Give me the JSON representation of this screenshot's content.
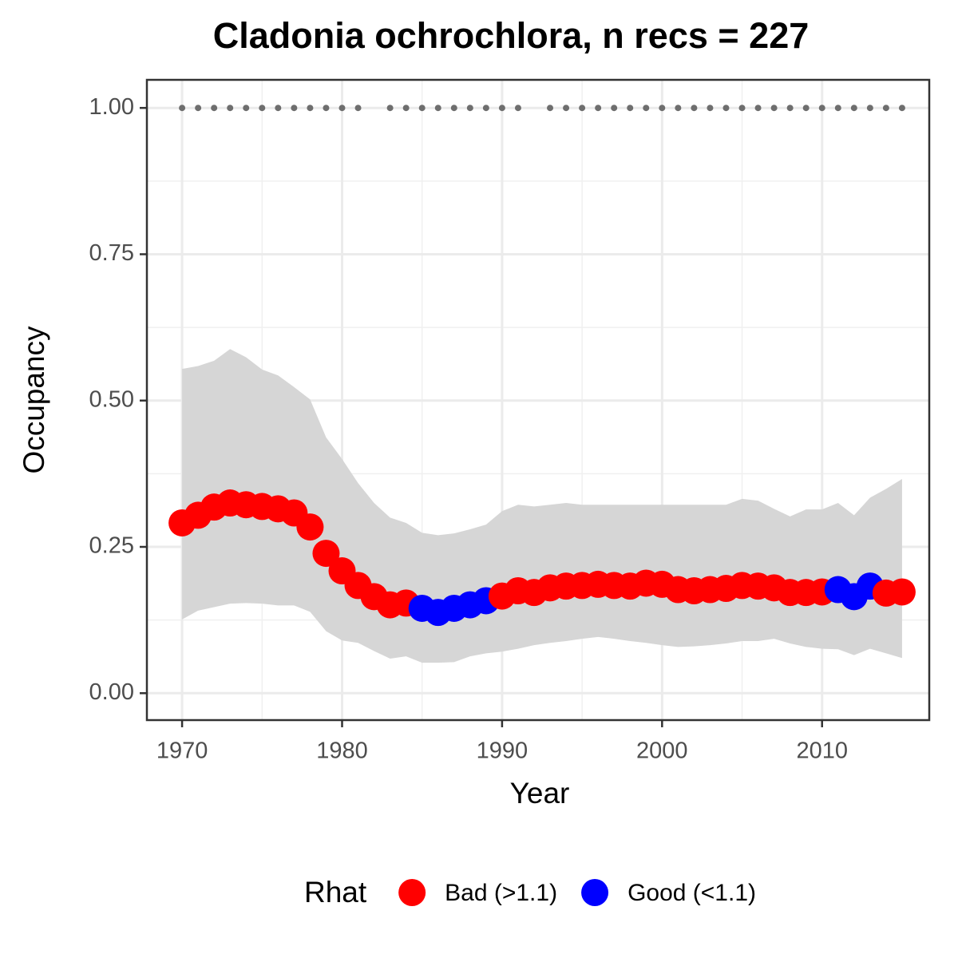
{
  "chart_data": {
    "type": "line",
    "title": "Cladonia ochrochlora, n recs = 227",
    "x_label": "Year",
    "y_label": "Occupancy",
    "legend_title": "Rhat",
    "legend_position": "bottom",
    "grid": true,
    "xlim": [
      1967.8,
      2016.7
    ],
    "ylim": [
      -0.046,
      1.048
    ],
    "xticks": [
      1970,
      1980,
      1990,
      2000,
      2010
    ],
    "yticks": [
      {
        "value": 0,
        "label": "0.00"
      },
      {
        "value": 0.25,
        "label": "0.25"
      },
      {
        "value": 0.5,
        "label": "0.50"
      },
      {
        "value": 0.75,
        "label": "0.75"
      },
      {
        "value": 1,
        "label": "1.00"
      }
    ],
    "x": [
      1970,
      1971,
      1972,
      1973,
      1974,
      1975,
      1976,
      1977,
      1978,
      1979,
      1980,
      1981,
      1982,
      1983,
      1984,
      1985,
      1986,
      1987,
      1988,
      1989,
      1990,
      1991,
      1992,
      1993,
      1994,
      1995,
      1996,
      1997,
      1998,
      1999,
      2000,
      2001,
      2002,
      2003,
      2004,
      2005,
      2006,
      2007,
      2008,
      2009,
      2010,
      2011,
      2012,
      2013,
      2014,
      2015
    ],
    "band_color": "#d6d6d6",
    "upper": [
      0.554,
      0.559,
      0.568,
      0.588,
      0.574,
      0.553,
      0.543,
      0.523,
      0.502,
      0.437,
      0.4,
      0.359,
      0.325,
      0.3,
      0.291,
      0.274,
      0.27,
      0.273,
      0.28,
      0.288,
      0.311,
      0.322,
      0.319,
      0.322,
      0.325,
      0.322,
      0.322,
      0.322,
      0.322,
      0.322,
      0.322,
      0.322,
      0.322,
      0.322,
      0.322,
      0.332,
      0.329,
      0.315,
      0.302,
      0.314,
      0.314,
      0.325,
      0.304,
      0.334,
      0.349,
      0.366
    ],
    "lower": [
      0.126,
      0.141,
      0.147,
      0.153,
      0.154,
      0.153,
      0.15,
      0.15,
      0.139,
      0.106,
      0.09,
      0.086,
      0.072,
      0.059,
      0.063,
      0.052,
      0.052,
      0.053,
      0.063,
      0.068,
      0.071,
      0.076,
      0.082,
      0.086,
      0.089,
      0.093,
      0.096,
      0.093,
      0.089,
      0.086,
      0.082,
      0.079,
      0.08,
      0.082,
      0.085,
      0.089,
      0.089,
      0.093,
      0.085,
      0.079,
      0.076,
      0.075,
      0.065,
      0.076,
      0.068,
      0.06
    ],
    "records": {
      "color": "#6e6e6e",
      "values": [
        1,
        1,
        1,
        1,
        1,
        1,
        1,
        1,
        1,
        1,
        1,
        1,
        null,
        1,
        1,
        1,
        1,
        1,
        1,
        1,
        1,
        1,
        null,
        1,
        1,
        1,
        1,
        1,
        1,
        1,
        1,
        1,
        1,
        1,
        1,
        1,
        1,
        1,
        1,
        1,
        1,
        1,
        1,
        1,
        1,
        1
      ]
    },
    "series": [
      {
        "name": "Bad (>1.1)",
        "color": "#ff0000",
        "values": [
          0.291,
          0.304,
          0.318,
          0.325,
          0.322,
          0.319,
          0.315,
          0.308,
          0.284,
          0.239,
          0.209,
          0.184,
          0.165,
          0.151,
          0.154,
          null,
          null,
          null,
          null,
          null,
          0.166,
          0.175,
          0.172,
          0.18,
          0.183,
          0.184,
          0.186,
          0.184,
          0.183,
          0.188,
          0.186,
          0.177,
          0.175,
          0.177,
          0.179,
          0.184,
          0.183,
          0.18,
          0.172,
          0.172,
          0.173,
          null,
          null,
          null,
          0.171,
          0.173
        ]
      },
      {
        "name": "Good (<1.1)",
        "color": "#0000ff",
        "values": [
          null,
          null,
          null,
          null,
          null,
          null,
          null,
          null,
          null,
          null,
          null,
          null,
          null,
          null,
          null,
          0.145,
          0.138,
          0.145,
          0.151,
          0.158,
          null,
          null,
          null,
          null,
          null,
          null,
          null,
          null,
          null,
          null,
          null,
          null,
          null,
          null,
          null,
          null,
          null,
          null,
          null,
          null,
          null,
          0.177,
          0.165,
          0.183,
          null,
          null
        ]
      }
    ]
  }
}
